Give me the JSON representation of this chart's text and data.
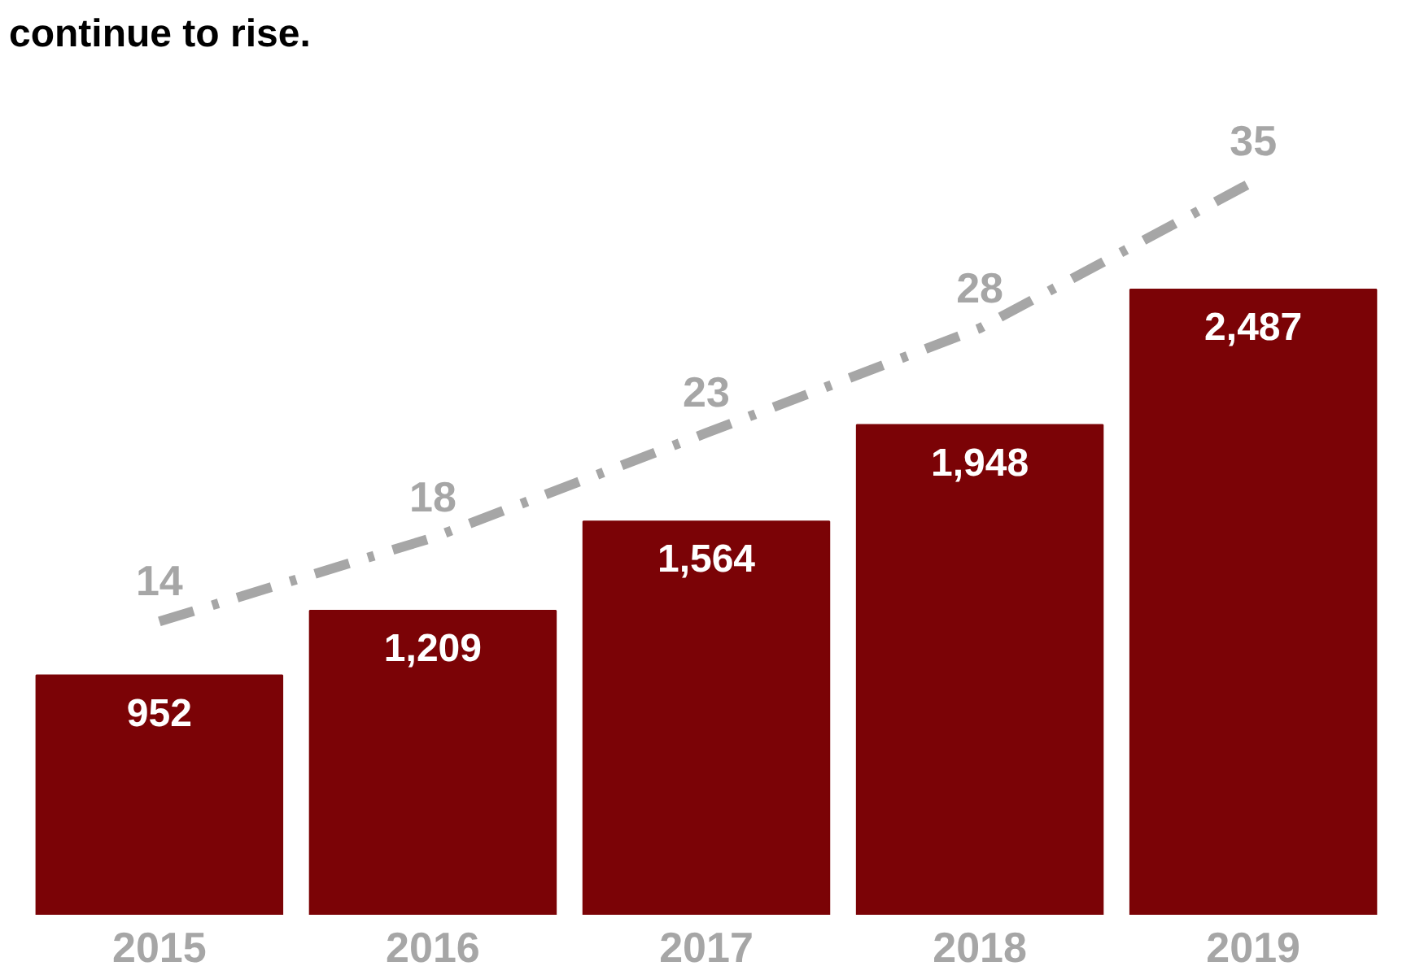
{
  "chart_data": {
    "type": "bar",
    "title": "continue to rise.",
    "categories": [
      "2015",
      "2016",
      "2017",
      "2018",
      "2019"
    ],
    "series": [
      {
        "color": "#7b0306",
        "values": [
          952,
          1209,
          1564,
          1948,
          2487
        ],
        "value_labels": [
          "952",
          "1,209",
          "1,564",
          "1,948",
          "2,487"
        ]
      },
      {
        "type": "line",
        "axis": "y2",
        "color": "#a6a6a6",
        "line_style": "dashed",
        "values": [
          14,
          18,
          23,
          28,
          35
        ],
        "value_labels": [
          "14",
          "18",
          "23",
          "28",
          "35"
        ]
      }
    ],
    "tick_labels": "x",
    "grid": false
  }
}
